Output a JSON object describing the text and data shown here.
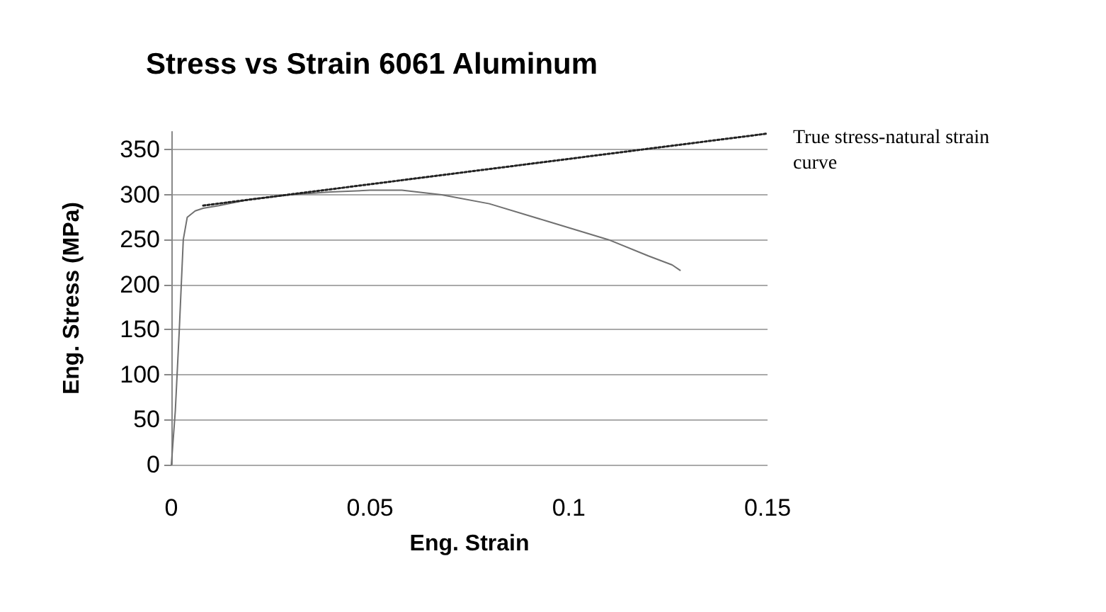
{
  "chart_data": {
    "type": "line",
    "title": "Stress vs Strain 6061 Aluminum",
    "xlabel": "Eng. Strain",
    "ylabel": "Eng. Stress (MPa)",
    "xlim": [
      0,
      0.15
    ],
    "xticks": [
      0,
      0.05,
      0.1,
      0.15
    ],
    "ylim": [
      0,
      370
    ],
    "yticks": [
      0,
      50,
      100,
      150,
      200,
      250,
      300,
      350
    ],
    "grid": "y",
    "marker": "none",
    "legend": false,
    "series": [
      {
        "color": "#707070",
        "line_style": "solid",
        "x": [
          0,
          0.001,
          0.002,
          0.003,
          0.004,
          0.006,
          0.008,
          0.012,
          0.02,
          0.03,
          0.04,
          0.05,
          0.058,
          0.068,
          0.08,
          0.095,
          0.11,
          0.12,
          0.126,
          0.128
        ],
        "values": [
          0,
          60,
          150,
          250,
          275,
          282,
          285,
          288,
          295,
          300,
          303,
          305,
          305,
          300,
          290,
          270,
          250,
          232,
          222,
          216
        ]
      },
      {
        "name": "True stress-natural strain curve",
        "color": "#222222",
        "line_style": "dotted",
        "x": [
          0.008,
          0.15
        ],
        "values": [
          288,
          368
        ]
      }
    ]
  }
}
